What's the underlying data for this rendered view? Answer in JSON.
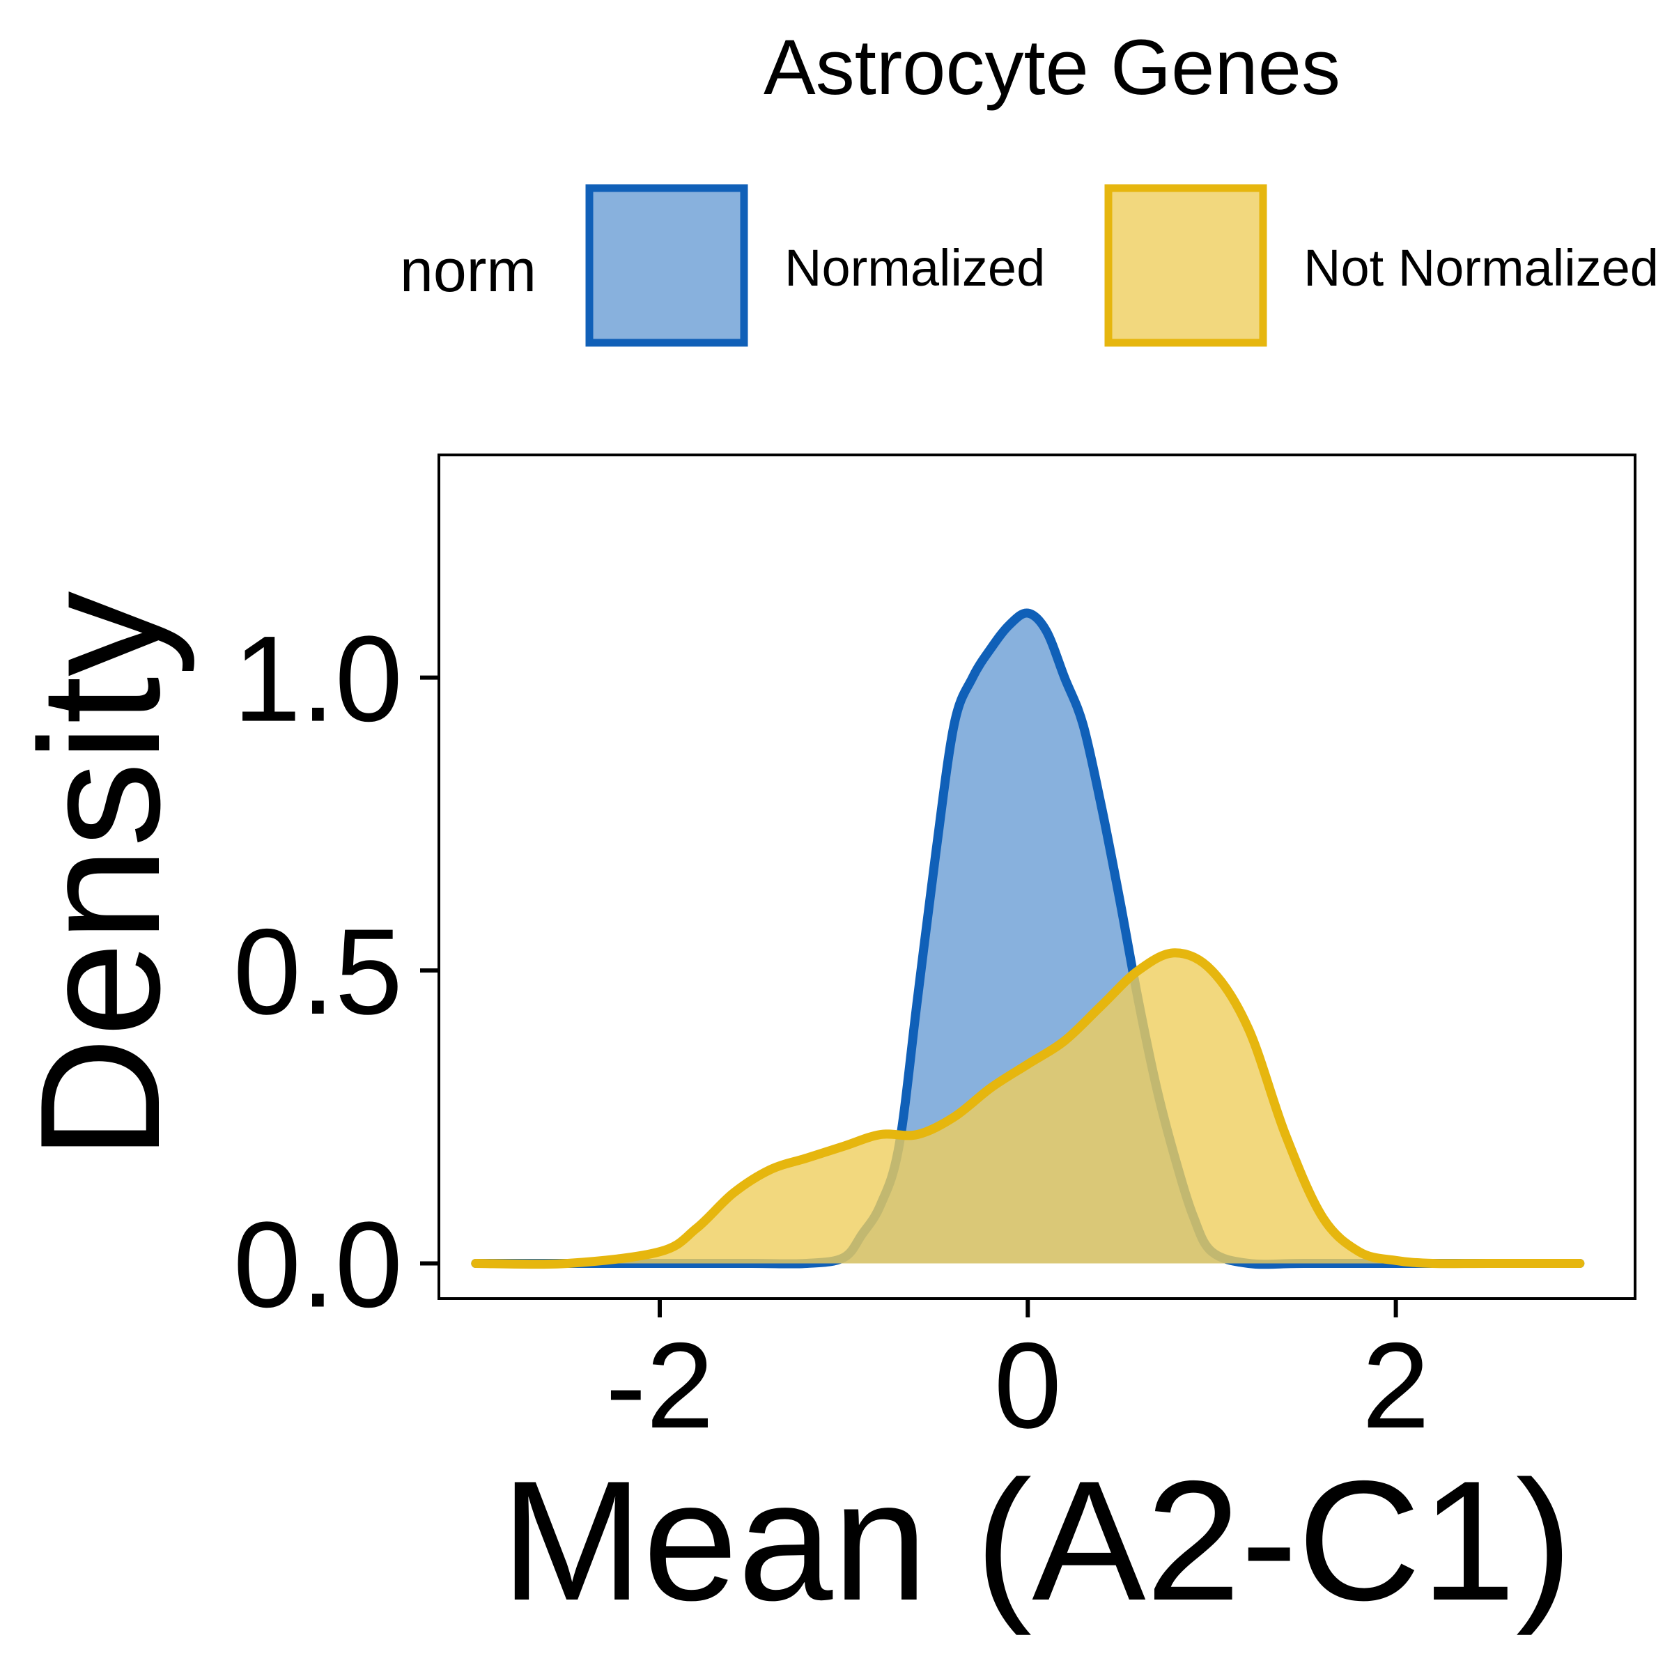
{
  "chart_data": {
    "type": "area",
    "title": "Astrocyte Genes",
    "xlabel": "Mean (A2-C1)",
    "ylabel": "Density",
    "xlim": [
      -3.2,
      3.3
    ],
    "ylim": [
      -0.06,
      1.38
    ],
    "x_ticks": [
      -2,
      0,
      2
    ],
    "y_ticks": [
      0.0,
      0.5,
      1.0
    ],
    "x_tick_labels": [
      "-2",
      "0",
      "2"
    ],
    "y_tick_labels": [
      "0.0",
      "0.5",
      "1.0"
    ],
    "grid": false,
    "legend": {
      "title": "norm",
      "position": "top",
      "entries": [
        "Normalized",
        "Not Normalized"
      ]
    },
    "series": [
      {
        "name": "Normalized",
        "line_color": "#1060b8",
        "fill_color": "#6a9ed5",
        "x": [
          -3.0,
          -2.5,
          -2.0,
          -1.5,
          -1.2,
          -1.0,
          -0.9,
          -0.8,
          -0.7,
          -0.6,
          -0.5,
          -0.4,
          -0.3,
          -0.2,
          -0.1,
          0.0,
          0.1,
          0.2,
          0.3,
          0.4,
          0.5,
          0.6,
          0.7,
          0.8,
          0.9,
          1.0,
          1.2,
          1.5,
          2.0,
          2.5,
          3.0
        ],
        "y": [
          0.0,
          0.0,
          0.0,
          0.0,
          0.0,
          0.01,
          0.05,
          0.1,
          0.2,
          0.45,
          0.7,
          0.92,
          1.0,
          1.05,
          1.09,
          1.11,
          1.08,
          1.0,
          0.92,
          0.78,
          0.62,
          0.45,
          0.3,
          0.18,
          0.08,
          0.02,
          0.0,
          0.0,
          0.0,
          0.0,
          0.0
        ]
      },
      {
        "name": "Not Normalized",
        "line_color": "#e6b60e",
        "fill_color": "#efce5e",
        "x": [
          -3.0,
          -2.5,
          -2.0,
          -1.8,
          -1.6,
          -1.4,
          -1.2,
          -1.0,
          -0.8,
          -0.6,
          -0.4,
          -0.2,
          0.0,
          0.2,
          0.4,
          0.6,
          0.8,
          1.0,
          1.2,
          1.4,
          1.6,
          1.8,
          2.0,
          2.2,
          2.5,
          3.0
        ],
        "y": [
          0.0,
          0.0,
          0.02,
          0.06,
          0.12,
          0.16,
          0.18,
          0.2,
          0.22,
          0.22,
          0.25,
          0.3,
          0.34,
          0.38,
          0.44,
          0.5,
          0.53,
          0.5,
          0.4,
          0.22,
          0.08,
          0.02,
          0.005,
          0.0,
          0.0,
          0.0
        ]
      }
    ]
  }
}
